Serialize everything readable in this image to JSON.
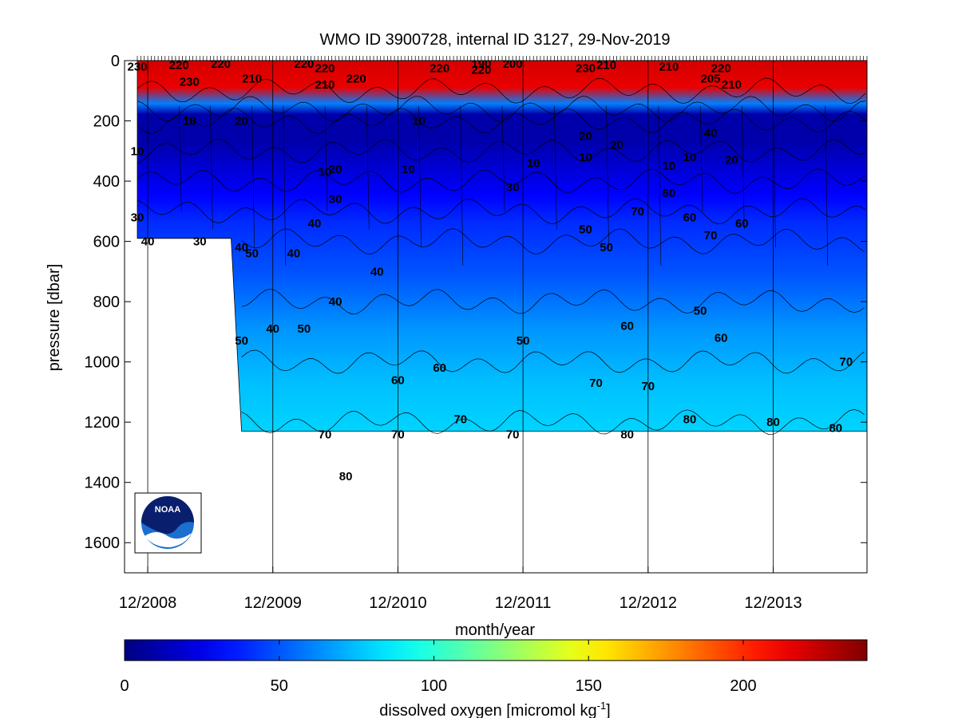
{
  "chart_data": {
    "type": "heatmap",
    "title": "WMO ID 3900728, internal ID 3127, 29-Nov-2019",
    "xlabel": "month/year",
    "ylabel": "pressure [dbar]",
    "x_ticks": [
      "12/2008",
      "12/2009",
      "12/2010",
      "12/2011",
      "12/2012",
      "12/2013"
    ],
    "x_range": [
      "11/2008",
      "09/2014"
    ],
    "y_ticks": [
      0,
      200,
      400,
      600,
      800,
      1000,
      1200,
      1400,
      1600
    ],
    "ylim": [
      1700,
      0
    ],
    "y_reversed": true,
    "vertical_grid_at_ticks": true,
    "colorbar": {
      "label": "dissolved oxygen [micromol kg",
      "label_sup": "-1",
      "label_end": "]",
      "ticks": [
        0,
        50,
        100,
        150,
        200
      ],
      "range": [
        0,
        240
      ],
      "colormap": "jet"
    },
    "contour_levels": [
      10,
      20,
      30,
      40,
      50,
      60,
      70,
      80,
      200,
      210,
      220,
      230
    ],
    "depth_profile": [
      {
        "pressure": 0,
        "oxygen": 220
      },
      {
        "pressure": 100,
        "oxygen": 215
      },
      {
        "pressure": 160,
        "oxygen": 60
      },
      {
        "pressure": 200,
        "oxygen": 10
      },
      {
        "pressure": 300,
        "oxygen": 10
      },
      {
        "pressure": 400,
        "oxygen": 20
      },
      {
        "pressure": 500,
        "oxygen": 30
      },
      {
        "pressure": 600,
        "oxygen": 40
      },
      {
        "pressure": 800,
        "oxygen": 50
      },
      {
        "pressure": 1000,
        "oxygen": 65
      },
      {
        "pressure": 1200,
        "oxygen": 75
      },
      {
        "pressure": 1380,
        "oxygen": 80
      }
    ],
    "max_profile_depth": [
      {
        "date": "11/2008",
        "pressure": 590
      },
      {
        "date": "08/2009",
        "pressure": 590
      },
      {
        "date": "09/2009",
        "pressure": 1230
      },
      {
        "date": "09/2014",
        "pressure": 1230
      }
    ],
    "contour_labels": [
      {
        "date": "11/2008",
        "pressure": 20,
        "text": "230"
      },
      {
        "date": "03/2009",
        "pressure": 15,
        "text": "220"
      },
      {
        "date": "04/2009",
        "pressure": 70,
        "text": "230"
      },
      {
        "date": "07/2009",
        "pressure": 10,
        "text": "220"
      },
      {
        "date": "10/2009",
        "pressure": 60,
        "text": "210"
      },
      {
        "date": "03/2010",
        "pressure": 10,
        "text": "220"
      },
      {
        "date": "05/2010",
        "pressure": 25,
        "text": "220"
      },
      {
        "date": "05/2010",
        "pressure": 80,
        "text": "210"
      },
      {
        "date": "08/2010",
        "pressure": 60,
        "text": "220"
      },
      {
        "date": "04/2011",
        "pressure": 25,
        "text": "220"
      },
      {
        "date": "08/2011",
        "pressure": 30,
        "text": "220"
      },
      {
        "date": "08/2011",
        "pressure": 10,
        "text": "190"
      },
      {
        "date": "11/2011",
        "pressure": 10,
        "text": "200"
      },
      {
        "date": "06/2012",
        "pressure": 25,
        "text": "230"
      },
      {
        "date": "08/2012",
        "pressure": 15,
        "text": "210"
      },
      {
        "date": "02/2013",
        "pressure": 20,
        "text": "210"
      },
      {
        "date": "06/2013",
        "pressure": 60,
        "text": "205"
      },
      {
        "date": "07/2013",
        "pressure": 25,
        "text": "220"
      },
      {
        "date": "08/2013",
        "pressure": 80,
        "text": "210"
      },
      {
        "date": "04/2009",
        "pressure": 200,
        "text": "10"
      },
      {
        "date": "09/2009",
        "pressure": 200,
        "text": "20"
      },
      {
        "date": "02/2011",
        "pressure": 200,
        "text": "10"
      },
      {
        "date": "11/2008",
        "pressure": 300,
        "text": "10"
      },
      {
        "date": "05/2010",
        "pressure": 370,
        "text": "10"
      },
      {
        "date": "06/2010",
        "pressure": 360,
        "text": "20"
      },
      {
        "date": "01/2011",
        "pressure": 360,
        "text": "10"
      },
      {
        "date": "01/2012",
        "pressure": 340,
        "text": "10"
      },
      {
        "date": "06/2012",
        "pressure": 320,
        "text": "10"
      },
      {
        "date": "06/2012",
        "pressure": 250,
        "text": "20"
      },
      {
        "date": "09/2012",
        "pressure": 280,
        "text": "20"
      },
      {
        "date": "02/2013",
        "pressure": 350,
        "text": "10"
      },
      {
        "date": "04/2013",
        "pressure": 320,
        "text": "10"
      },
      {
        "date": "06/2013",
        "pressure": 240,
        "text": "40"
      },
      {
        "date": "08/2013",
        "pressure": 330,
        "text": "20"
      },
      {
        "date": "11/2008",
        "pressure": 520,
        "text": "30"
      },
      {
        "date": "12/2008",
        "pressure": 600,
        "text": "40"
      },
      {
        "date": "05/2009",
        "pressure": 600,
        "text": "30"
      },
      {
        "date": "09/2009",
        "pressure": 620,
        "text": "40"
      },
      {
        "date": "10/2009",
        "pressure": 640,
        "text": "50"
      },
      {
        "date": "02/2010",
        "pressure": 640,
        "text": "40"
      },
      {
        "date": "04/2010",
        "pressure": 540,
        "text": "40"
      },
      {
        "date": "06/2010",
        "pressure": 460,
        "text": "30"
      },
      {
        "date": "10/2010",
        "pressure": 700,
        "text": "40"
      },
      {
        "date": "11/2011",
        "pressure": 420,
        "text": "30"
      },
      {
        "date": "06/2012",
        "pressure": 560,
        "text": "50"
      },
      {
        "date": "08/2012",
        "pressure": 620,
        "text": "50"
      },
      {
        "date": "11/2012",
        "pressure": 500,
        "text": "70"
      },
      {
        "date": "02/2013",
        "pressure": 440,
        "text": "60"
      },
      {
        "date": "04/2013",
        "pressure": 520,
        "text": "60"
      },
      {
        "date": "06/2013",
        "pressure": 580,
        "text": "70"
      },
      {
        "date": "09/2013",
        "pressure": 540,
        "text": "60"
      },
      {
        "date": "09/2009",
        "pressure": 930,
        "text": "50"
      },
      {
        "date": "12/2009",
        "pressure": 890,
        "text": "40"
      },
      {
        "date": "03/2010",
        "pressure": 890,
        "text": "50"
      },
      {
        "date": "06/2010",
        "pressure": 800,
        "text": "40"
      },
      {
        "date": "12/2010",
        "pressure": 1060,
        "text": "60"
      },
      {
        "date": "04/2011",
        "pressure": 1020,
        "text": "60"
      },
      {
        "date": "12/2011",
        "pressure": 930,
        "text": "50"
      },
      {
        "date": "07/2012",
        "pressure": 1070,
        "text": "70"
      },
      {
        "date": "10/2012",
        "pressure": 880,
        "text": "60"
      },
      {
        "date": "12/2012",
        "pressure": 1080,
        "text": "70"
      },
      {
        "date": "05/2013",
        "pressure": 830,
        "text": "50"
      },
      {
        "date": "07/2013",
        "pressure": 920,
        "text": "60"
      },
      {
        "date": "07/2014",
        "pressure": 1000,
        "text": "70"
      },
      {
        "date": "05/2010",
        "pressure": 1240,
        "text": "70"
      },
      {
        "date": "07/2010",
        "pressure": 1380,
        "text": "80"
      },
      {
        "date": "12/2010",
        "pressure": 1240,
        "text": "70"
      },
      {
        "date": "06/2011",
        "pressure": 1190,
        "text": "70"
      },
      {
        "date": "11/2011",
        "pressure": 1240,
        "text": "70"
      },
      {
        "date": "10/2012",
        "pressure": 1240,
        "text": "80"
      },
      {
        "date": "04/2013",
        "pressure": 1190,
        "text": "80"
      },
      {
        "date": "12/2013",
        "pressure": 1200,
        "text": "80"
      },
      {
        "date": "06/2014",
        "pressure": 1220,
        "text": "80"
      }
    ]
  },
  "logo": {
    "text": "NOAA"
  }
}
